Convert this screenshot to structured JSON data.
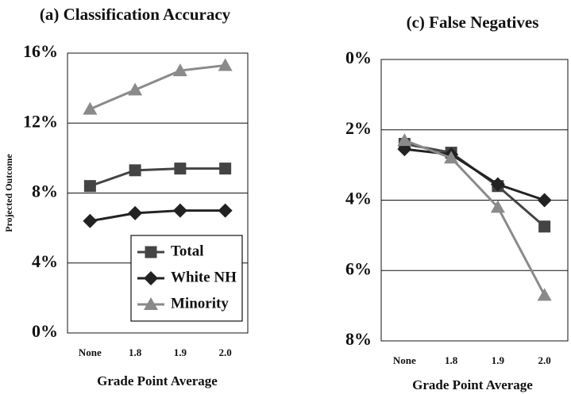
{
  "chart_data": [
    {
      "type": "line",
      "title": "(a) Classification Accuracy",
      "y_label": "Projected Outcome",
      "x_label": "Grade Point Average",
      "categories": [
        "None",
        "1.8",
        "1.9",
        "2.0"
      ],
      "series": [
        {
          "name": "Total",
          "color": "#444444",
          "marker": "square",
          "values": [
            8.4,
            9.3,
            9.4,
            9.4
          ]
        },
        {
          "name": "White NH",
          "color": "#222222",
          "marker": "diamond",
          "values": [
            6.4,
            6.85,
            7.0,
            7.0
          ]
        },
        {
          "name": "Minority",
          "color": "#8a8a8a",
          "marker": "triangle",
          "values": [
            12.8,
            13.9,
            15.0,
            15.3
          ]
        }
      ],
      "ylim": [
        0,
        16
      ],
      "yticks": [
        {
          "value": 0,
          "label": "0%"
        },
        {
          "value": 4,
          "label": "4%"
        },
        {
          "value": 8,
          "label": "8%"
        },
        {
          "value": 12,
          "label": "12%"
        },
        {
          "value": 16,
          "label": "16%"
        }
      ],
      "grid": true,
      "legend": "lower right"
    },
    {
      "type": "line",
      "title": "(c) False Negatives",
      "x_label": "Grade Point Average",
      "categories": [
        "None",
        "1.8",
        "1.9",
        "2.0"
      ],
      "series": [
        {
          "name": "Total",
          "color": "#444444",
          "marker": "square",
          "values": [
            2.4,
            2.65,
            3.6,
            4.75
          ]
        },
        {
          "name": "White NH",
          "color": "#222222",
          "marker": "diamond",
          "values": [
            2.55,
            2.7,
            3.55,
            4.0
          ]
        },
        {
          "name": "Minority",
          "color": "#8a8a8a",
          "marker": "triangle",
          "values": [
            2.3,
            2.8,
            4.2,
            6.7
          ]
        }
      ],
      "ylim": [
        8,
        0
      ],
      "yticks": [
        {
          "value": 0,
          "label": "0%"
        },
        {
          "value": 2,
          "label": "2%"
        },
        {
          "value": 4,
          "label": "4%"
        },
        {
          "value": 6,
          "label": "6%"
        },
        {
          "value": 8,
          "label": "8%"
        }
      ],
      "grid": true
    }
  ]
}
